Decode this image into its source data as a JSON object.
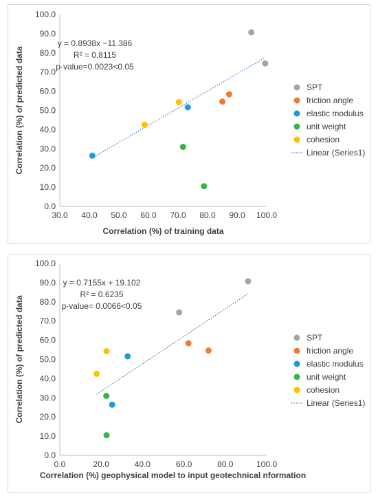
{
  "chart_data": [
    {
      "type": "scatter",
      "xlabel": "Correlation (%) of training data",
      "ylabel": "Correlation (%) of predicted data",
      "xlim": [
        30,
        100
      ],
      "ylim": [
        0,
        100
      ],
      "x_ticks": [
        "30.0",
        "40.0",
        "50.0",
        "60.0",
        "70.0",
        "80.0",
        "90.0",
        "100.0"
      ],
      "y_ticks": [
        "0.0",
        "10.0",
        "20.0",
        "30.0",
        "40.0",
        "50.0",
        "60.0",
        "70.0",
        "80.0",
        "90.0",
        "100.0"
      ],
      "grid": false,
      "legend_position": "right",
      "series": [
        {
          "name": "SPT",
          "color": "#a5a5a5",
          "points": [
            [
              94.8,
              90.7
            ],
            [
              99.5,
              74.5
            ]
          ]
        },
        {
          "name": "friction angle",
          "color": "#ed7d31",
          "points": [
            [
              85.0,
              54.6
            ],
            [
              87.3,
              58.4
            ]
          ]
        },
        {
          "name": "elastic modulus",
          "color": "#1f9bdb",
          "points": [
            [
              41.0,
              26.4
            ],
            [
              73.3,
              51.6
            ]
          ]
        },
        {
          "name": "unit weight",
          "color": "#3cb34a",
          "points": [
            [
              71.7,
              31.0
            ],
            [
              78.8,
              10.5
            ]
          ]
        },
        {
          "name": "cohesion",
          "color": "#ffc000",
          "points": [
            [
              58.7,
              42.5
            ],
            [
              70.3,
              54.3
            ]
          ]
        }
      ],
      "trendline": {
        "name": "Linear (Series1)",
        "color": "#4a7fd4",
        "x_range": [
          41.0,
          99.5
        ],
        "slope": 0.8938,
        "intercept": -11.386
      },
      "annotations": [
        "y = 0.8938x −11.386",
        "R² = 0.8115",
        "p-value=0.0023<0.05"
      ]
    },
    {
      "type": "scatter",
      "xlabel": "Correlation (%) geophysical model to input geotechnical nformation",
      "ylabel": "Correlation (%) of predicted data",
      "xlim": [
        0,
        100
      ],
      "ylim": [
        0,
        100
      ],
      "x_ticks": [
        "0.0",
        "20.0",
        "40.0",
        "60.0",
        "80.0",
        "100.0"
      ],
      "y_ticks": [
        "0.0",
        "10.0",
        "20.0",
        "30.0",
        "40.0",
        "50.0",
        "60.0",
        "70.0",
        "80.0",
        "90.0",
        "100.0"
      ],
      "grid": false,
      "legend_position": "right",
      "series": [
        {
          "name": "SPT",
          "color": "#a5a5a5",
          "points": [
            [
              91.0,
              90.7
            ],
            [
              57.7,
              74.5
            ]
          ]
        },
        {
          "name": "friction angle",
          "color": "#ed7d31",
          "points": [
            [
              62.2,
              58.4
            ],
            [
              71.9,
              54.6
            ]
          ]
        },
        {
          "name": "elastic modulus",
          "color": "#1f9bdb",
          "points": [
            [
              32.8,
              51.6
            ],
            [
              25.3,
              26.4
            ]
          ]
        },
        {
          "name": "unit weight",
          "color": "#3cb34a",
          "points": [
            [
              22.5,
              31.0
            ],
            [
              22.6,
              10.5
            ]
          ]
        },
        {
          "name": "cohesion",
          "color": "#ffc000",
          "points": [
            [
              22.6,
              54.3
            ],
            [
              17.8,
              42.5
            ]
          ]
        }
      ],
      "trendline": {
        "name": "Linear (Series1)",
        "color": "#4a7fd4",
        "x_range": [
          17.8,
          91.0
        ],
        "slope": 0.7155,
        "intercept": 19.102
      },
      "annotations": [
        "y = 0.7155x + 19.102",
        "R² = 0.6235",
        "p-value= 0.0066<0.05"
      ]
    }
  ]
}
